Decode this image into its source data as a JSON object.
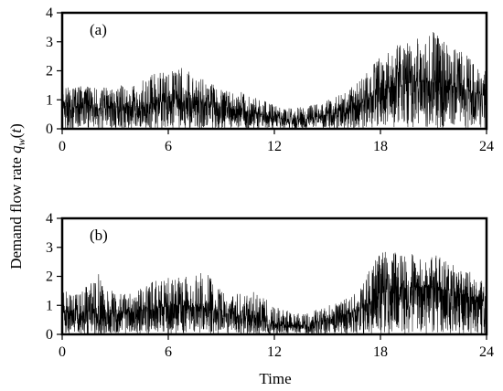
{
  "figure": {
    "xlabel": "Time",
    "ylabel_main": "Demand flow rate ",
    "ylabel_q": "q",
    "ylabel_sub": "w",
    "ylabel_paren_open": "(",
    "ylabel_t": "t",
    "ylabel_paren_close": ")"
  },
  "chart_data": [
    {
      "type": "line",
      "panel_label": "(a)",
      "xlabel": "",
      "ylabel": "",
      "xlim": [
        0,
        24
      ],
      "ylim": [
        0,
        4
      ],
      "x_ticks": [
        0,
        6,
        12,
        18,
        24
      ],
      "y_ticks": [
        0,
        1,
        2,
        3,
        4
      ],
      "grid": false,
      "legend": "none",
      "line_color": "#000000",
      "sample_interval_hours": 0.01,
      "envelope": {
        "x": [
          0,
          1,
          2,
          3,
          4,
          5,
          6,
          7,
          8,
          9,
          10,
          11,
          12,
          13,
          14,
          15,
          16,
          17,
          18,
          19,
          20,
          21,
          22,
          23,
          24
        ],
        "mean": [
          0.75,
          0.7,
          0.7,
          0.7,
          0.75,
          0.85,
          0.95,
          1.0,
          0.9,
          0.75,
          0.65,
          0.5,
          0.35,
          0.3,
          0.35,
          0.5,
          0.65,
          0.9,
          1.3,
          1.5,
          1.6,
          1.6,
          1.5,
          1.3,
          1.1
        ],
        "peak": [
          1.5,
          1.5,
          1.4,
          1.5,
          1.5,
          1.9,
          2.1,
          2.1,
          1.7,
          1.4,
          1.3,
          1.1,
          0.8,
          0.7,
          0.8,
          1.0,
          1.3,
          1.8,
          2.5,
          2.9,
          3.1,
          3.4,
          2.9,
          2.5,
          2.0
        ]
      }
    },
    {
      "type": "line",
      "panel_label": "(b)",
      "xlabel": "Time",
      "ylabel": "",
      "xlim": [
        0,
        24
      ],
      "ylim": [
        0,
        4
      ],
      "x_ticks": [
        0,
        6,
        12,
        18,
        24
      ],
      "y_ticks": [
        0,
        1,
        2,
        3,
        4
      ],
      "grid": false,
      "legend": "none",
      "line_color": "#000000",
      "sample_interval_hours": 0.01,
      "envelope": {
        "x": [
          0,
          1,
          2,
          3,
          4,
          5,
          6,
          7,
          8,
          9,
          10,
          11,
          12,
          13,
          14,
          15,
          16,
          17,
          18,
          19,
          20,
          21,
          22,
          23,
          24
        ],
        "mean": [
          0.75,
          0.7,
          0.7,
          0.7,
          0.75,
          0.85,
          0.95,
          1.0,
          0.9,
          0.75,
          0.65,
          0.5,
          0.35,
          0.3,
          0.35,
          0.5,
          0.65,
          0.9,
          1.4,
          1.55,
          1.6,
          1.6,
          1.5,
          1.3,
          1.1
        ],
        "peak": [
          1.5,
          1.4,
          2.25,
          1.4,
          1.4,
          1.8,
          2.0,
          2.0,
          2.25,
          1.5,
          1.4,
          1.5,
          1.0,
          0.8,
          0.8,
          1.0,
          1.2,
          1.8,
          2.9,
          2.8,
          2.8,
          2.8,
          2.5,
          2.2,
          2.0
        ]
      }
    }
  ]
}
